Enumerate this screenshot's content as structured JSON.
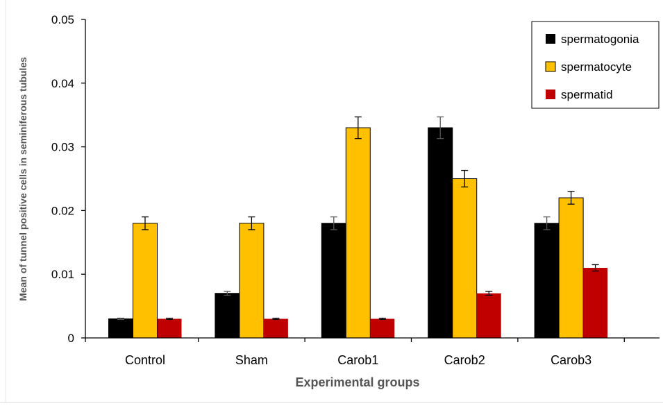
{
  "chart_data": {
    "type": "bar",
    "title": "",
    "xlabel": "Experimental groups",
    "ylabel": "Mean of tunnel positive cells in seminiferous tubules",
    "ylim": [
      0,
      0.05
    ],
    "yticks": [
      0,
      0.01,
      0.02,
      0.03,
      0.04,
      0.05
    ],
    "ytick_labels": [
      "0",
      "0.01",
      "0.02",
      "0.03",
      "0.04",
      "0.05"
    ],
    "categories": [
      "Control",
      "Sham",
      "Carob1",
      "Carob2",
      "Carob3"
    ],
    "grid": false,
    "legend_position": "top-right",
    "error_bars": true,
    "series": [
      {
        "name": "spermatogonia",
        "color": "#000000",
        "values": [
          0.003,
          0.007,
          0.018,
          0.033,
          0.018
        ],
        "errors": [
          0.0001,
          0.0003,
          0.001,
          0.0017,
          0.001
        ]
      },
      {
        "name": "spermatocyte",
        "color": "#FFC000",
        "values": [
          0.018,
          0.018,
          0.033,
          0.025,
          0.022
        ],
        "errors": [
          0.001,
          0.001,
          0.0017,
          0.0013,
          0.001
        ]
      },
      {
        "name": "spermatid",
        "color": "#C00000",
        "values": [
          0.003,
          0.003,
          0.003,
          0.007,
          0.011
        ],
        "errors": [
          0.0001,
          0.0001,
          0.0001,
          0.0003,
          0.0005
        ]
      }
    ]
  }
}
